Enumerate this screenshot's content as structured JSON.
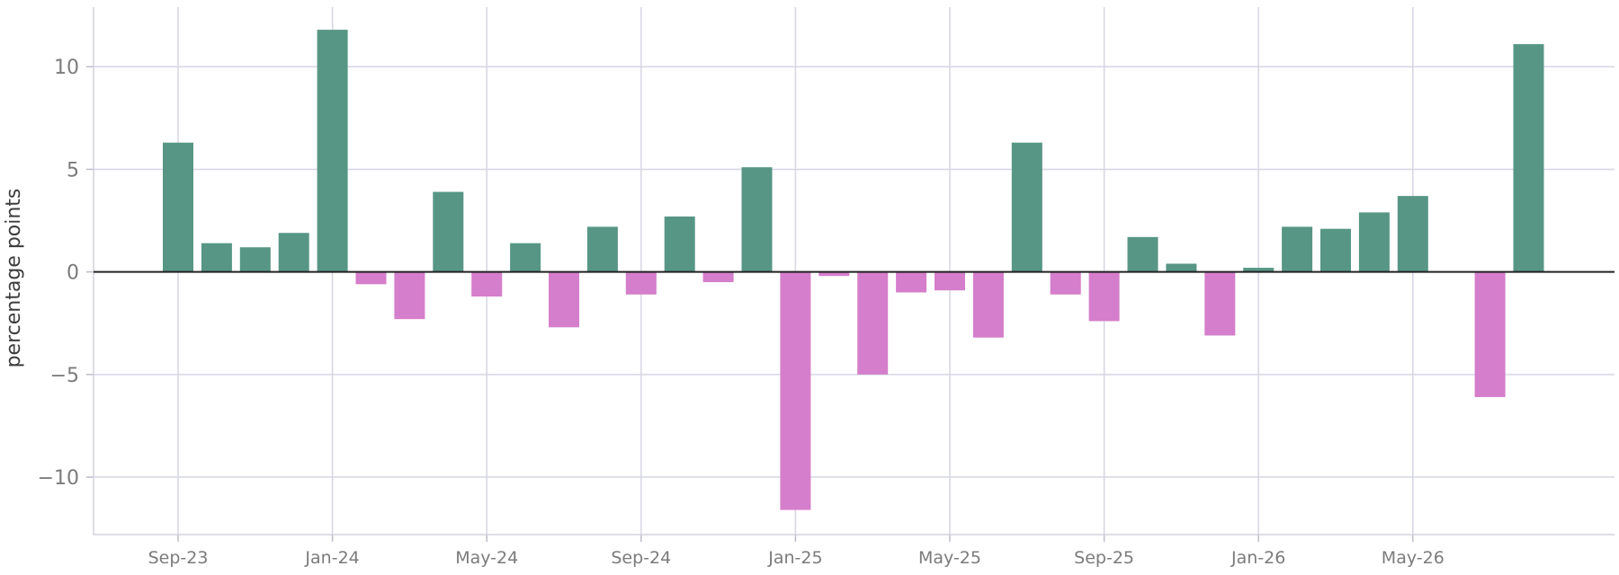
{
  "chart_data": {
    "type": "bar",
    "ylabel": "percentage points",
    "xlabel": "",
    "ylim": [
      -12.8,
      12.9
    ],
    "y_ticks": [
      10,
      5,
      0,
      -5,
      -10
    ],
    "y_tick_labels": [
      "10",
      "5",
      "0",
      "−5",
      "−10"
    ],
    "x_tick_labels": [
      "Sep-23",
      "Jan-24",
      "May-24",
      "Sep-24",
      "Jan-25",
      "May-25",
      "Sep-25",
      "Jan-26",
      "May-26"
    ],
    "x": [
      "2023-09",
      "2023-10",
      "2023-11",
      "2023-12",
      "2024-01",
      "2024-02",
      "2024-03",
      "2024-04",
      "2024-05",
      "2024-06",
      "2024-07",
      "2024-08",
      "2024-09",
      "2024-10",
      "2024-11",
      "2024-12",
      "2025-01",
      "2025-02",
      "2025-03",
      "2025-04",
      "2025-05",
      "2025-06",
      "2025-07",
      "2025-08",
      "2025-09",
      "2025-10",
      "2025-11",
      "2025-12",
      "2026-01",
      "2026-02",
      "2026-03",
      "2026-04",
      "2026-05",
      "2026-06",
      "2026-07",
      "2026-08"
    ],
    "values": [
      6.3,
      1.4,
      1.2,
      1.9,
      11.8,
      -0.6,
      -2.3,
      3.9,
      -1.2,
      1.4,
      -2.7,
      2.2,
      -1.1,
      2.7,
      -0.5,
      5.1,
      -11.6,
      -0.2,
      -5.0,
      -1.0,
      -0.9,
      -3.2,
      6.3,
      -1.1,
      -2.4,
      1.7,
      0.4,
      -3.1,
      0.2,
      2.2,
      2.1,
      2.9,
      3.7,
      0.0,
      -6.1,
      11.1
    ],
    "grid": true,
    "colors": {
      "positive": "#579685",
      "negative": "#d57ecb",
      "grid": "#d6d6e4",
      "zero_line": "#222222",
      "tick_text": "#7b7b7b"
    }
  }
}
